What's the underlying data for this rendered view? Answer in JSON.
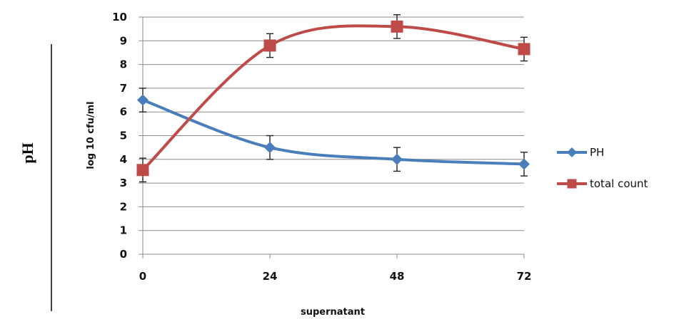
{
  "page": {
    "side_label": "pH"
  },
  "chart_data": {
    "type": "line",
    "title": "",
    "xlabel": "supernatant",
    "ylabel": "log 10 cfu/ml",
    "categories": [
      "0",
      "24",
      "48",
      "72"
    ],
    "ylim": [
      0,
      10
    ],
    "yticks": [
      0,
      1,
      2,
      3,
      4,
      5,
      6,
      7,
      8,
      9,
      10
    ],
    "grid": "horizontal",
    "legend_position": "right",
    "smooth": true,
    "series": [
      {
        "name": "PH",
        "values": [
          6.5,
          4.5,
          4.0,
          3.8
        ],
        "error": [
          0.5,
          0.5,
          0.5,
          0.5
        ],
        "color": "#4a7ebb",
        "marker": "diamond"
      },
      {
        "name": "total count",
        "values": [
          3.55,
          8.8,
          9.6,
          8.65
        ],
        "error": [
          0.5,
          0.5,
          0.5,
          0.5
        ],
        "color": "#be4b48",
        "marker": "square"
      }
    ]
  }
}
